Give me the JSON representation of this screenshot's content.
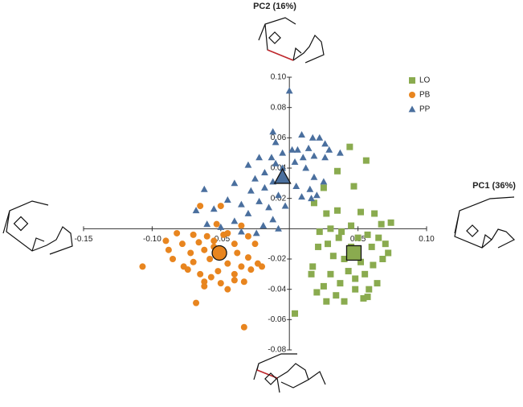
{
  "chart_data": {
    "type": "scatter",
    "x_label": "PC1 (36%)",
    "y_label": "PC2 (16%)",
    "xlim": [
      -0.15,
      0.1
    ],
    "ylim": [
      -0.08,
      0.1
    ],
    "xticks": [
      -0.15,
      {
        "value": -0.1,
        "label": "-0.10"
      },
      -0.05,
      0.05,
      {
        "value": 0.1,
        "label": "0.10"
      }
    ],
    "yticks": [
      {
        "value": 0.1,
        "label": "0.10"
      },
      0.08,
      0.06,
      0.04,
      0.02,
      -0.02,
      -0.04,
      -0.06,
      -0.08
    ],
    "legend": "top-right",
    "series": [
      {
        "name": "LO",
        "color": "#8aab4f",
        "marker": "square",
        "x": [
          0.044,
          0.056,
          0.035,
          0.047,
          0.025,
          0.018,
          0.027,
          0.035,
          0.052,
          0.062,
          0.074,
          0.067,
          0.045,
          0.03,
          0.022,
          0.057,
          0.065,
          0.07,
          0.06,
          0.036,
          0.028,
          0.021,
          0.032,
          0.04,
          0.052,
          0.061,
          0.068,
          0.055,
          0.043,
          0.03,
          0.017,
          0.025,
          0.037,
          0.048,
          0.058,
          0.064,
          0.034,
          0.02,
          0.027,
          0.04,
          0.054,
          0.057,
          0.004,
          0.016,
          0.045,
          0.05,
          0.038,
          0.072,
          0.048
        ],
        "y": [
          0.054,
          0.045,
          0.038,
          0.028,
          0.027,
          0.017,
          0.01,
          0.012,
          0.011,
          0.01,
          0.004,
          0.003,
          0.002,
          0.0,
          -0.002,
          -0.004,
          -0.006,
          -0.01,
          -0.012,
          -0.006,
          -0.01,
          -0.012,
          -0.018,
          -0.02,
          -0.022,
          -0.024,
          -0.02,
          -0.03,
          -0.028,
          -0.03,
          -0.025,
          -0.038,
          -0.036,
          -0.033,
          -0.04,
          -0.036,
          -0.044,
          -0.042,
          -0.048,
          -0.048,
          -0.046,
          -0.045,
          -0.056,
          -0.03,
          -0.012,
          -0.006,
          -0.002,
          -0.016,
          -0.04
        ],
        "mean": {
          "x": 0.047,
          "y": -0.016
        }
      },
      {
        "name": "PB",
        "color": "#e8851f",
        "marker": "circle",
        "x": [
          -0.065,
          -0.05,
          -0.053,
          -0.035,
          -0.082,
          -0.07,
          -0.06,
          -0.045,
          -0.03,
          -0.09,
          -0.078,
          -0.066,
          -0.055,
          -0.04,
          -0.025,
          -0.088,
          -0.072,
          -0.062,
          -0.038,
          -0.03,
          -0.085,
          -0.07,
          -0.058,
          -0.045,
          -0.035,
          -0.023,
          -0.107,
          -0.074,
          -0.065,
          -0.052,
          -0.04,
          -0.028,
          -0.062,
          -0.05,
          -0.057,
          -0.045,
          -0.062,
          -0.04,
          -0.068,
          -0.033,
          -0.02,
          -0.033,
          -0.077,
          -0.055,
          -0.048
        ],
        "y": [
          0.015,
          0.015,
          0.003,
          0.002,
          -0.003,
          -0.004,
          -0.005,
          -0.003,
          -0.005,
          -0.008,
          -0.01,
          -0.009,
          -0.008,
          -0.01,
          -0.01,
          -0.014,
          -0.016,
          -0.014,
          -0.016,
          -0.019,
          -0.02,
          -0.022,
          -0.02,
          -0.023,
          -0.025,
          -0.023,
          -0.025,
          -0.027,
          -0.03,
          -0.028,
          -0.03,
          -0.027,
          -0.035,
          -0.036,
          -0.032,
          -0.04,
          -0.038,
          -0.034,
          -0.049,
          -0.035,
          -0.025,
          -0.065,
          -0.025,
          -0.012,
          -0.004
        ],
        "mean": {
          "x": -0.051,
          "y": -0.016
        }
      },
      {
        "name": "PP",
        "color": "#4a6f9e",
        "marker": "triangle",
        "x": [
          0.0,
          -0.012,
          0.009,
          0.017,
          0.022,
          0.026,
          -0.01,
          0.002,
          0.006,
          0.014,
          0.029,
          0.037,
          0.018,
          0.026,
          0.01,
          -0.005,
          0.004,
          -0.022,
          -0.013,
          -0.03,
          0.012,
          -0.01,
          -0.005,
          0.018,
          0.025,
          -0.04,
          -0.018,
          -0.025,
          -0.012,
          0.005,
          0.015,
          -0.018,
          -0.062,
          -0.028,
          -0.008,
          0.009,
          0.02,
          0.016,
          -0.045,
          -0.022,
          -0.035,
          -0.055,
          -0.068,
          -0.015,
          -0.003,
          -0.03,
          -0.012,
          -0.04,
          -0.06,
          -0.05,
          -0.019,
          -0.008,
          -0.024,
          -0.035
        ],
        "y": [
          0.091,
          0.064,
          0.062,
          0.06,
          0.06,
          0.056,
          0.057,
          0.052,
          0.052,
          0.053,
          0.052,
          0.05,
          0.048,
          0.047,
          0.047,
          0.05,
          0.044,
          0.047,
          0.047,
          0.042,
          0.04,
          0.043,
          0.04,
          0.034,
          0.031,
          0.03,
          0.037,
          0.033,
          0.031,
          0.028,
          0.026,
          0.027,
          0.026,
          0.025,
          0.022,
          0.021,
          0.022,
          0.02,
          0.019,
          0.018,
          0.016,
          0.013,
          0.012,
          0.014,
          0.015,
          0.01,
          0.006,
          0.005,
          0.003,
          0.001,
          0.002,
          0.0,
          -0.003,
          -0.002
        ],
        "mean": {
          "x": -0.005,
          "y": 0.034
        }
      }
    ]
  }
}
